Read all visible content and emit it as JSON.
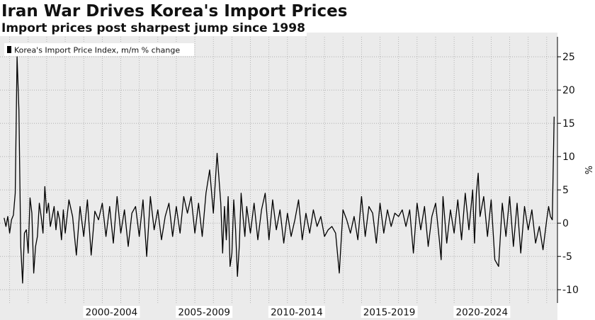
{
  "header": {
    "title": "Iran War Drives Korea's Import Prices",
    "subtitle": "Import prices post sharpest jump since 1998"
  },
  "colors": {
    "plot_background": "#ebebeb",
    "line": "#000000",
    "grid": "#a8a8a8",
    "text": "#111111"
  },
  "chart_data": {
    "type": "line",
    "title": "Iran War Drives Korea's Import Prices",
    "subtitle": "Import prices post sharpest jump since 1998",
    "legend": "top-left",
    "grid": true,
    "ylabel": "%",
    "yaxis_side": "right",
    "ylim": [
      -12,
      28
    ],
    "yticks": [
      25,
      20,
      15,
      10,
      5,
      0,
      -5,
      -10
    ],
    "xlim": [
      1996.67,
      2026.58
    ],
    "x_period_labels": [
      {
        "label": "2000-2004",
        "start": 2000,
        "end": 2005
      },
      {
        "label": "2005-2009",
        "start": 2005,
        "end": 2010
      },
      {
        "label": "2010-2014",
        "start": 2010,
        "end": 2015
      },
      {
        "label": "2015-2019",
        "start": 2015,
        "end": 2020
      },
      {
        "label": "2020-2024",
        "start": 2020,
        "end": 2025
      }
    ],
    "series": [
      {
        "name": "Korea's Import Price Index, m/m % change",
        "x": [
          1996.7,
          1996.8,
          1996.9,
          1997.0,
          1997.1,
          1997.2,
          1997.3,
          1997.4,
          1997.5,
          1997.6,
          1997.7,
          1997.8,
          1997.9,
          1998.0,
          1998.1,
          1998.2,
          1998.3,
          1998.4,
          1998.5,
          1998.6,
          1998.7,
          1998.8,
          1998.9,
          1999.0,
          1999.1,
          1999.2,
          1999.3,
          1999.4,
          1999.5,
          1999.6,
          1999.7,
          1999.8,
          1999.9,
          2000.0,
          2000.2,
          2000.4,
          2000.6,
          2000.8,
          2001.0,
          2001.2,
          2001.4,
          2001.6,
          2001.8,
          2002.0,
          2002.2,
          2002.4,
          2002.6,
          2002.8,
          2003.0,
          2003.2,
          2003.4,
          2003.6,
          2003.8,
          2004.0,
          2004.2,
          2004.4,
          2004.6,
          2004.8,
          2005.0,
          2005.2,
          2005.4,
          2005.6,
          2005.8,
          2006.0,
          2006.2,
          2006.4,
          2006.6,
          2006.8,
          2007.0,
          2007.2,
          2007.4,
          2007.6,
          2007.8,
          2008.0,
          2008.2,
          2008.4,
          2008.5,
          2008.6,
          2008.7,
          2008.8,
          2008.9,
          2009.0,
          2009.1,
          2009.2,
          2009.3,
          2009.4,
          2009.5,
          2009.6,
          2009.7,
          2009.8,
          2010.0,
          2010.2,
          2010.4,
          2010.6,
          2010.8,
          2011.0,
          2011.2,
          2011.4,
          2011.6,
          2011.8,
          2012.0,
          2012.2,
          2012.4,
          2012.6,
          2012.8,
          2013.0,
          2013.2,
          2013.4,
          2013.6,
          2013.8,
          2014.0,
          2014.2,
          2014.4,
          2014.6,
          2014.8,
          2015.0,
          2015.2,
          2015.4,
          2015.6,
          2015.8,
          2016.0,
          2016.2,
          2016.4,
          2016.6,
          2016.8,
          2017.0,
          2017.2,
          2017.4,
          2017.6,
          2017.8,
          2018.0,
          2018.2,
          2018.4,
          2018.6,
          2018.8,
          2019.0,
          2019.2,
          2019.4,
          2019.6,
          2019.8,
          2020.0,
          2020.2,
          2020.3,
          2020.4,
          2020.6,
          2020.8,
          2021.0,
          2021.2,
          2021.4,
          2021.6,
          2021.8,
          2022.0,
          2022.1,
          2022.2,
          2022.3,
          2022.4,
          2022.6,
          2022.8,
          2023.0,
          2023.2,
          2023.4,
          2023.6,
          2023.8,
          2024.0,
          2024.2,
          2024.4,
          2024.6,
          2024.8,
          2025.0,
          2025.2,
          2025.4,
          2025.6,
          2025.8,
          2026.0,
          2026.1,
          2026.2,
          2026.3,
          2026.4
        ],
        "y": [
          0.8,
          -0.5,
          1.0,
          -1.5,
          0.5,
          1.2,
          4.5,
          25.0,
          17.0,
          -3.5,
          -9.0,
          -1.5,
          -1.0,
          -4.5,
          3.8,
          1.5,
          -7.5,
          -3.5,
          -2.0,
          3.0,
          1.0,
          -1.5,
          5.5,
          1.5,
          3.0,
          -0.5,
          1.0,
          2.5,
          -1.0,
          1.8,
          0.5,
          -2.5,
          2.0,
          -1.5,
          3.5,
          1.0,
          -4.8,
          2.5,
          -2.0,
          3.5,
          -4.8,
          1.8,
          0.5,
          3.0,
          -2.0,
          2.5,
          -3.0,
          4.0,
          -1.5,
          2.0,
          -3.5,
          1.5,
          2.5,
          -2.0,
          3.5,
          -5.0,
          4.0,
          -1.0,
          2.0,
          -2.5,
          1.0,
          3.0,
          -2.0,
          2.5,
          -1.5,
          4.0,
          1.5,
          4.0,
          -1.5,
          3.0,
          -2.0,
          4.5,
          8.0,
          1.5,
          10.5,
          3.0,
          -4.5,
          2.5,
          -2.5,
          4.0,
          -6.5,
          -4.5,
          3.5,
          -1.0,
          -8.0,
          -3.5,
          4.5,
          1.0,
          -2.0,
          2.5,
          -1.5,
          3.0,
          -2.5,
          2.0,
          4.5,
          -2.5,
          3.5,
          -1.0,
          2.0,
          -3.0,
          1.5,
          -2.0,
          0.5,
          3.5,
          -2.5,
          1.5,
          -1.5,
          2.0,
          -0.5,
          1.0,
          -2.0,
          -1.0,
          -0.5,
          -1.5,
          -7.5,
          2.0,
          0.5,
          -1.5,
          1.0,
          -2.5,
          4.0,
          -2.0,
          2.5,
          1.5,
          -3.0,
          3.0,
          -1.5,
          2.0,
          -0.5,
          1.5,
          1.0,
          2.0,
          -0.5,
          2.0,
          -4.5,
          3.0,
          -1.0,
          2.5,
          -3.5,
          1.0,
          3.0,
          -2.5,
          -5.5,
          4.0,
          -3.0,
          2.0,
          -1.5,
          3.5,
          -2.5,
          4.5,
          -1.0,
          5.0,
          -3.0,
          4.5,
          7.5,
          1.0,
          4.0,
          -2.0,
          3.5,
          -5.5,
          -6.5,
          3.0,
          -2.0,
          4.0,
          -3.5,
          3.0,
          -4.5,
          2.5,
          -1.0,
          2.0,
          -3.0,
          -0.5,
          -4.0,
          0.5,
          2.5,
          1.0,
          0.5,
          16.0
        ]
      }
    ]
  }
}
